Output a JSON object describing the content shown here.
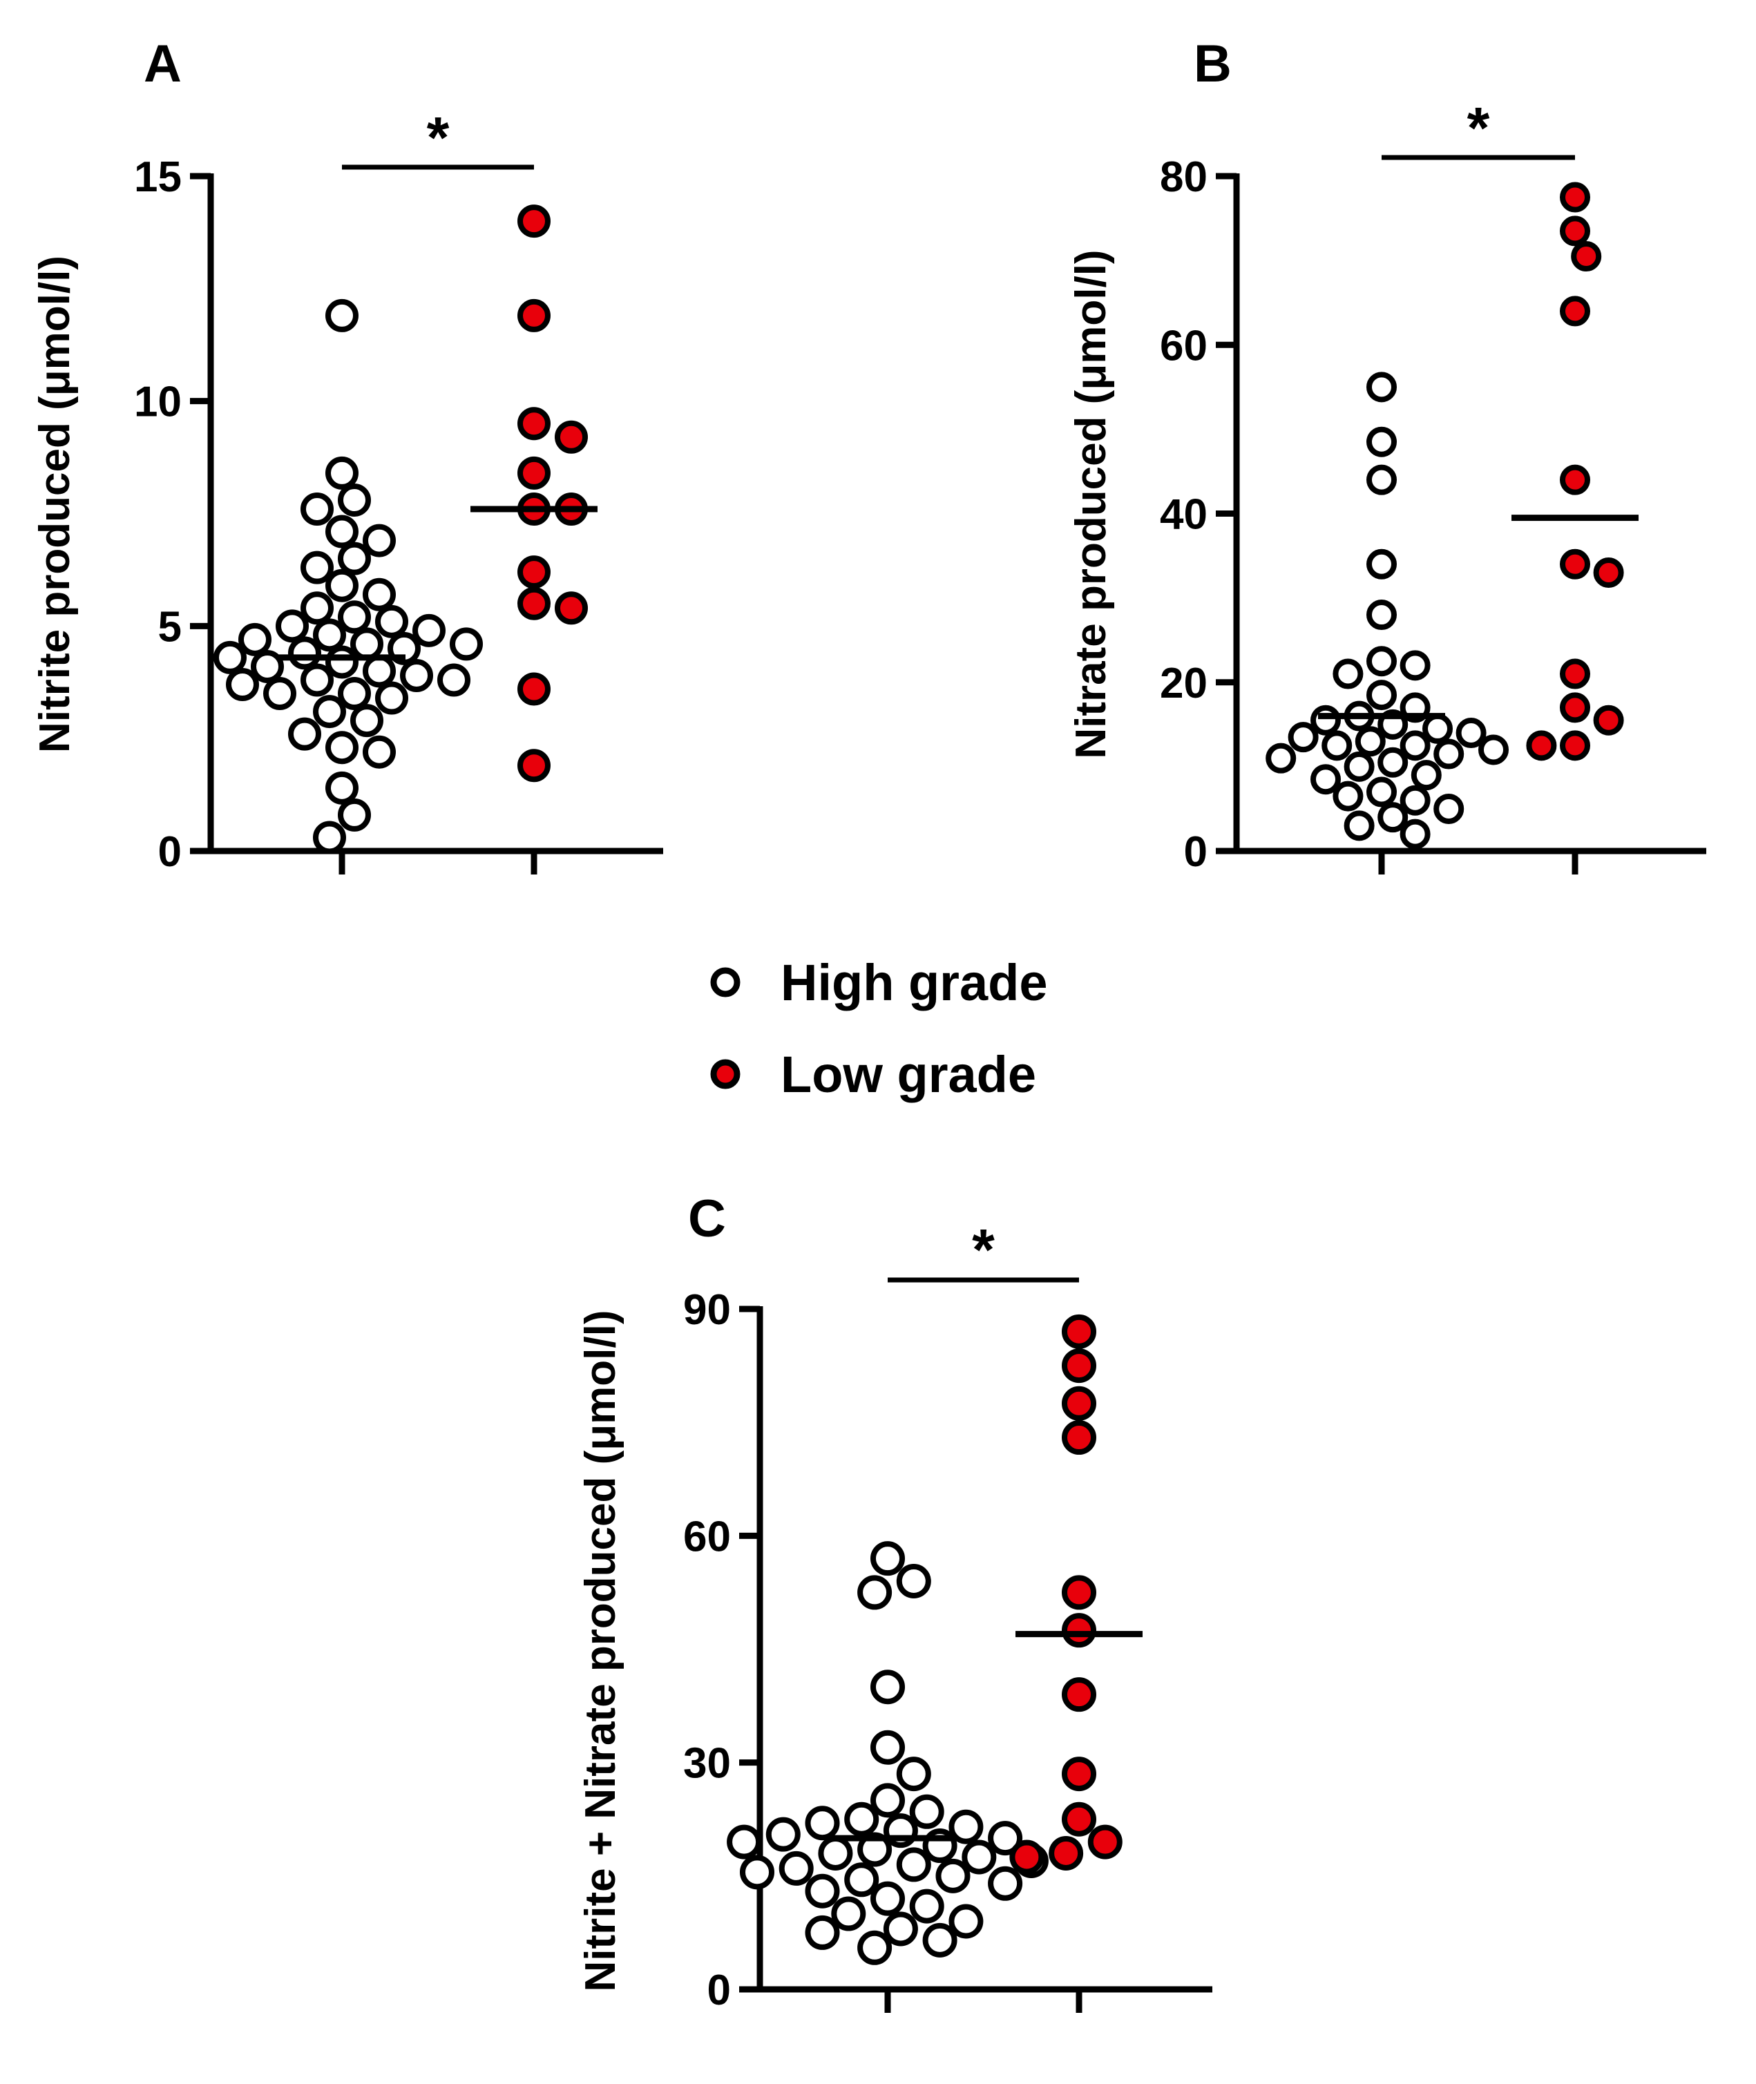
{
  "legend": {
    "items": [
      {
        "label": "High grade",
        "fill": "#ffffff"
      },
      {
        "label": "Low grade",
        "fill": "#e8000b"
      }
    ]
  },
  "chart_data": [
    {
      "panel": "A",
      "type": "scatter",
      "ylabel": "Nitrite produced (μmol/l)",
      "ylim": [
        0,
        15
      ],
      "yticks": [
        0,
        5,
        10,
        15
      ],
      "significance": "*",
      "series": [
        {
          "name": "High grade",
          "color": "#ffffff",
          "values": [
            11.9,
            8.4,
            7.8,
            7.6,
            7.1,
            6.9,
            6.5,
            6.3,
            5.9,
            5.7,
            5.4,
            5.2,
            5.1,
            5.0,
            4.9,
            4.8,
            4.7,
            4.6,
            4.6,
            4.5,
            4.4,
            4.3,
            4.2,
            4.1,
            4.0,
            3.9,
            3.8,
            3.8,
            3.7,
            3.5,
            3.5,
            3.4,
            3.1,
            2.9,
            2.6,
            2.3,
            2.2,
            1.4,
            0.8,
            0.3
          ],
          "mean": 4.3
        },
        {
          "name": "Low grade",
          "color": "#e8000b",
          "values": [
            14.0,
            11.9,
            9.5,
            9.2,
            8.4,
            7.6,
            7.6,
            6.2,
            5.5,
            5.4,
            3.6,
            1.9
          ],
          "mean": 7.6
        }
      ]
    },
    {
      "panel": "B",
      "type": "scatter",
      "ylabel": "Nitrate produced (μmol/l)",
      "ylim": [
        0,
        80
      ],
      "yticks": [
        0,
        20,
        40,
        60,
        80
      ],
      "significance": "*",
      "series": [
        {
          "name": "High grade",
          "color": "#ffffff",
          "values": [
            55,
            48.5,
            44,
            34,
            28,
            22.5,
            22,
            21,
            18.5,
            17,
            16,
            15.5,
            15,
            14.5,
            14,
            13.5,
            13,
            12.5,
            12.5,
            12,
            11.5,
            11,
            10.5,
            10,
            9,
            8.5,
            7,
            6.5,
            6,
            5,
            4,
            3,
            2
          ],
          "mean": 16
        },
        {
          "name": "Low grade",
          "color": "#e8000b",
          "values": [
            77.5,
            73.5,
            70.5,
            64,
            44,
            34,
            33,
            21,
            17,
            15.5,
            12.5,
            12.5
          ],
          "mean": 39.5
        }
      ]
    },
    {
      "panel": "C",
      "type": "scatter",
      "ylabel": "Nitrite + Nitrate produced (μmol/l)",
      "ylim": [
        0,
        90
      ],
      "yticks": [
        0,
        30,
        60,
        90
      ],
      "significance": "*",
      "series": [
        {
          "name": "High grade",
          "color": "#ffffff",
          "values": [
            57,
            54,
            52.5,
            40,
            32,
            28.5,
            25,
            23.5,
            22.5,
            22,
            21.5,
            21,
            20.5,
            20,
            19.5,
            19,
            18.5,
            18,
            17.5,
            17,
            16.5,
            16,
            15.5,
            15,
            14.5,
            14,
            13,
            12,
            11,
            10,
            9,
            8,
            7.5,
            6.5,
            5.5
          ],
          "mean": 20
        },
        {
          "name": "Low grade",
          "color": "#e8000b",
          "values": [
            87,
            82.5,
            77.5,
            73,
            52.5,
            47.5,
            39,
            28.5,
            22.5,
            19.5,
            18,
            17.5
          ],
          "mean": 47
        }
      ]
    }
  ]
}
